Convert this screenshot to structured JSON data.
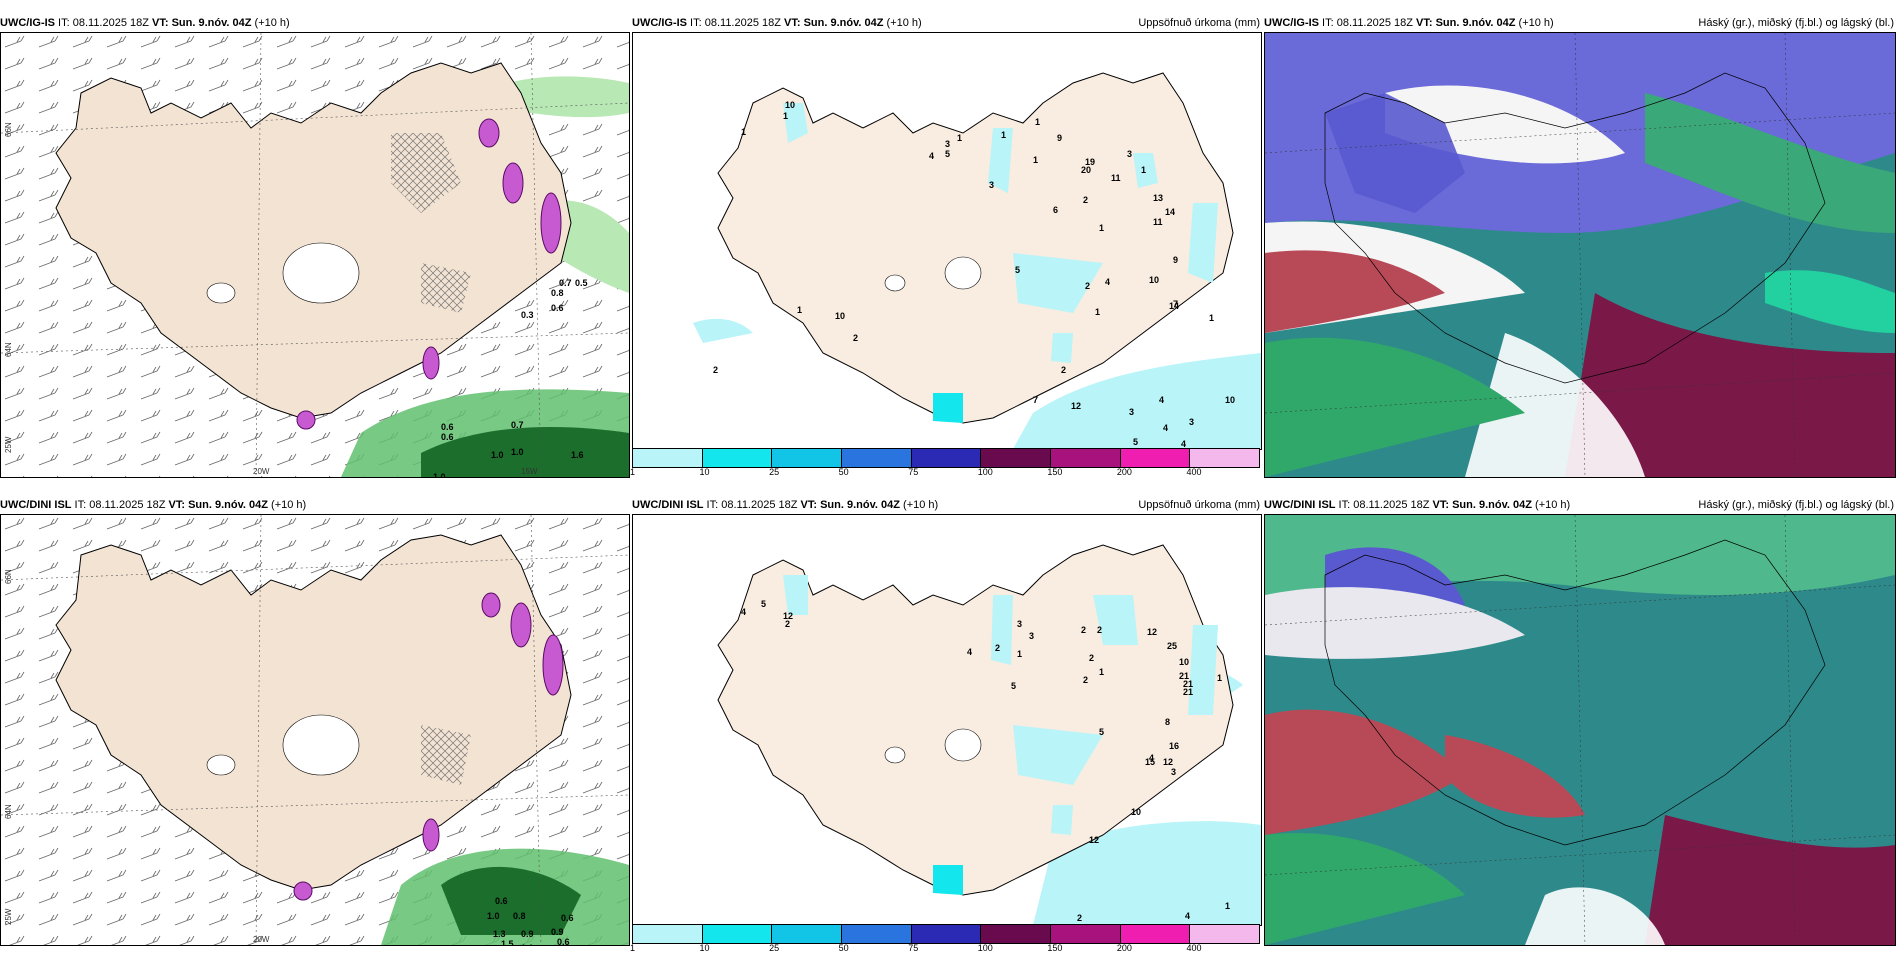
{
  "panels": [
    {
      "model": "UWC/IG-IS",
      "it": " IT: 08.11.2025 18Z ",
      "vt_label": "VT:",
      "vt_value": "Sun. 9.nóv. 04Z",
      "lead": " (+10 h)",
      "right": ""
    },
    {
      "model": "UWC/IG-IS",
      "it": " IT: 08.11.2025 18Z ",
      "vt_label": "VT:",
      "vt_value": "Sun. 9.nóv. 04Z",
      "lead": " (+10 h)",
      "right": "Uppsöfnuð úrkoma (mm)"
    },
    {
      "model": "UWC/IG-IS",
      "it": " IT: 08.11.2025 18Z ",
      "vt_label": "VT:",
      "vt_value": "Sun. 9.nóv. 04Z",
      "lead": " (+10 h)",
      "right": "Háský (gr.), miðský (fj.bl.) og lágský (bl.)"
    },
    {
      "model": "UWC/DINI ISL",
      "it": " IT: 08.11.2025 18Z ",
      "vt_label": "VT:",
      "vt_value": "Sun. 9.nóv. 04Z",
      "lead": " (+10 h)",
      "right": ""
    },
    {
      "model": "UWC/DINI ISL",
      "it": " IT: 08.11.2025 18Z ",
      "vt_label": "VT:",
      "vt_value": "Sun. 9.nóv. 04Z",
      "lead": " (+10 h)",
      "right": "Uppsöfnuð úrkoma (mm)"
    },
    {
      "model": "UWC/DINI ISL",
      "it": " IT: 08.11.2025 18Z ",
      "vt_label": "VT:",
      "vt_value": "Sun. 9.nóv. 04Z",
      "lead": " (+10 h)",
      "right": "Háský (gr.), miðský (fj.bl.) og lágský (bl.)"
    }
  ],
  "axis_labels": {
    "lat66": "66N",
    "lat64": "64N",
    "lon25": "25W",
    "lon20": "20W",
    "lon15": "15W"
  },
  "legend": {
    "ticks": [
      "1",
      "10",
      "25",
      "50",
      "75",
      "100",
      "150",
      "200",
      "400"
    ],
    "colors": [
      "#b8f4f8",
      "#14e6ee",
      "#12c4e6",
      "#2a74e0",
      "#2a2ab4",
      "#6a0a4e",
      "#a8127c",
      "#f01eb0",
      "#f4b8ec"
    ]
  },
  "top_precip_values": [
    "10",
    "1",
    "1",
    "2",
    "3",
    "4",
    "3",
    "5",
    "1",
    "1",
    "1",
    "9",
    "19",
    "20",
    "11",
    "1",
    "3",
    "13",
    "2",
    "11",
    "14",
    "1",
    "6",
    "5",
    "9",
    "4",
    "7",
    "10",
    "2",
    "14",
    "1",
    "1",
    "2",
    "1",
    "2",
    "10",
    "10",
    "12",
    "3",
    "4",
    "4",
    "3",
    "7",
    "4",
    "5",
    "1"
  ],
  "bottom_precip_values": [
    "5",
    "4",
    "12",
    "2",
    "3",
    "2",
    "4",
    "3",
    "1",
    "2",
    "12",
    "2",
    "25",
    "10",
    "1",
    "2",
    "21",
    "1",
    "2",
    "5",
    "21",
    "21",
    "5",
    "8",
    "4",
    "12",
    "16",
    "15",
    "12",
    "3",
    "10",
    "1",
    "2",
    "1",
    "3",
    "4",
    "4",
    "4",
    "4",
    "4",
    "1"
  ],
  "top_left_values": [
    "0.7",
    "0.5",
    "0.8",
    "0.6",
    "0.3",
    "0.6",
    "0.6",
    "0.7",
    "1.0",
    "1.0",
    "1.6",
    "1.0"
  ],
  "bottom_left_values": [
    "0.6",
    "1.0",
    "0.8",
    "0.6",
    "1.3",
    "0.9",
    "0.9",
    "0.6",
    "1.1",
    "0.7",
    "1.5"
  ]
}
